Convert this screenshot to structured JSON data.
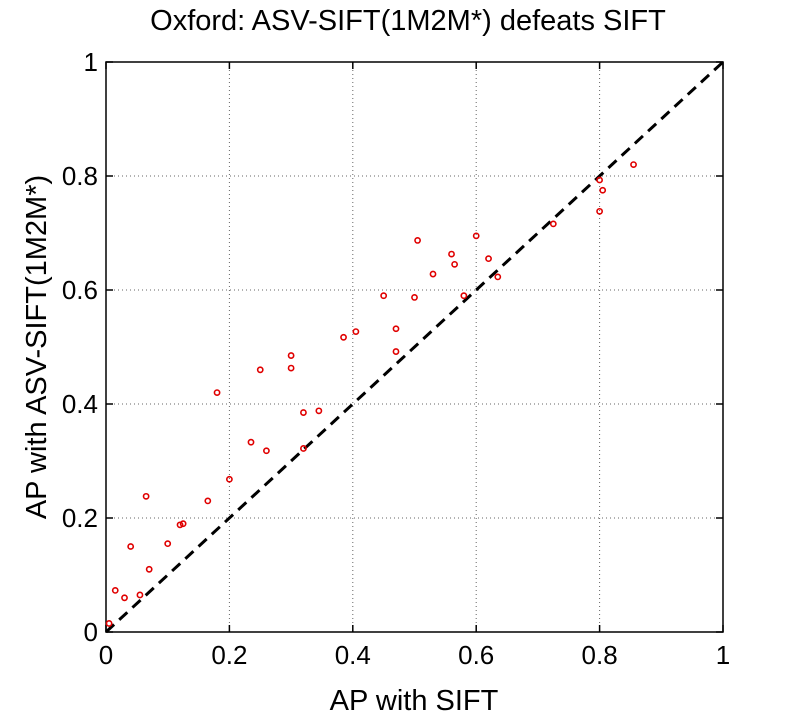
{
  "chart_data": {
    "type": "scatter",
    "title": "Oxford: ASV-SIFT(1M2M*) defeats SIFT",
    "xlabel": "AP with SIFT",
    "ylabel": "AP with ASV-SIFT(1M2M*)",
    "xlim": [
      0,
      1
    ],
    "ylim": [
      0,
      1
    ],
    "x_ticks": [
      "0",
      "0.2",
      "0.4",
      "0.6",
      "0.8",
      "1"
    ],
    "y_ticks": [
      "0",
      "0.2",
      "0.4",
      "0.6",
      "0.8",
      "1"
    ],
    "grid": true,
    "reference_line": {
      "style": "dashed",
      "color": "#000000",
      "from": [
        0,
        0
      ],
      "to": [
        1,
        1
      ]
    },
    "series": [
      {
        "marker": "circle",
        "color": "#e00000",
        "points": [
          [
            0.005,
            0.015
          ],
          [
            0.015,
            0.073
          ],
          [
            0.03,
            0.06
          ],
          [
            0.04,
            0.15
          ],
          [
            0.055,
            0.065
          ],
          [
            0.065,
            0.238
          ],
          [
            0.07,
            0.11
          ],
          [
            0.1,
            0.155
          ],
          [
            0.12,
            0.188
          ],
          [
            0.125,
            0.19
          ],
          [
            0.165,
            0.23
          ],
          [
            0.18,
            0.42
          ],
          [
            0.2,
            0.268
          ],
          [
            0.235,
            0.333
          ],
          [
            0.25,
            0.46
          ],
          [
            0.26,
            0.318
          ],
          [
            0.3,
            0.485
          ],
          [
            0.3,
            0.463
          ],
          [
            0.32,
            0.385
          ],
          [
            0.32,
            0.322
          ],
          [
            0.345,
            0.388
          ],
          [
            0.385,
            0.517
          ],
          [
            0.405,
            0.527
          ],
          [
            0.45,
            0.59
          ],
          [
            0.47,
            0.532
          ],
          [
            0.47,
            0.492
          ],
          [
            0.5,
            0.587
          ],
          [
            0.505,
            0.687
          ],
          [
            0.53,
            0.628
          ],
          [
            0.58,
            0.59
          ],
          [
            0.56,
            0.663
          ],
          [
            0.565,
            0.645
          ],
          [
            0.6,
            0.695
          ],
          [
            0.62,
            0.655
          ],
          [
            0.635,
            0.623
          ],
          [
            0.725,
            0.716
          ],
          [
            0.8,
            0.793
          ],
          [
            0.805,
            0.775
          ],
          [
            0.8,
            0.738
          ],
          [
            0.855,
            0.82
          ]
        ]
      }
    ]
  }
}
